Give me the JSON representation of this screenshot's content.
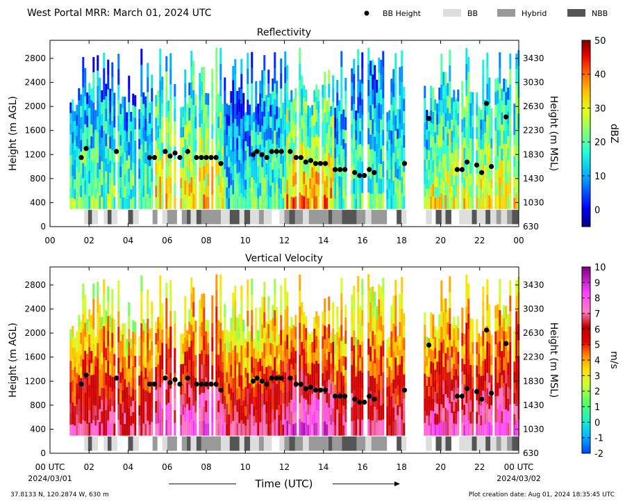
{
  "header": {
    "title": "West Portal MRR:  March 01, 2024 UTC",
    "legend": [
      {
        "label": "BB Height",
        "kind": "dot",
        "color": "#000000"
      },
      {
        "label": "BB",
        "kind": "box",
        "color": "#dddddd"
      },
      {
        "label": "Hybrid",
        "kind": "box",
        "color": "#999999"
      },
      {
        "label": "NBB",
        "kind": "box",
        "color": "#555555"
      }
    ]
  },
  "footer": {
    "location": "37.8133 N, 120.2874 W, 630 m",
    "created": "Plot creation date: Aug 01, 2024 18:35:45 UTC",
    "date_start": "2024/03/01",
    "date_end": "2024/03/02"
  },
  "shared_axes": {
    "xlabel": "Time (UTC)",
    "x_ticks": [
      0,
      2,
      4,
      6,
      8,
      10,
      12,
      14,
      16,
      18,
      20,
      22,
      24
    ],
    "x_tick_labels_top": [
      "00",
      "02",
      "04",
      "06",
      "08",
      "10",
      "12",
      "14",
      "16",
      "18",
      "20",
      "22",
      "00"
    ],
    "x_tick_labels_bottom": [
      "00 UTC",
      "02",
      "04",
      "06",
      "08",
      "10",
      "12",
      "14",
      "16",
      "18",
      "20",
      "22",
      "00 UTC"
    ],
    "xlim": [
      0,
      24
    ],
    "ylabel_left": "Height (m AGL)",
    "ylabel_right": "Height (m MSL)",
    "y_ticks_left": [
      0,
      400,
      800,
      1200,
      1600,
      2000,
      2400,
      2800
    ],
    "y_ticks_right": [
      630,
      1030,
      1430,
      1830,
      2230,
      2630,
      3030,
      3430
    ],
    "ylim": [
      0,
      3100
    ]
  },
  "chart_data": [
    {
      "type": "heatmap",
      "title": "Reflectivity",
      "colorbar_label": "dBZ",
      "colorbar_range": [
        -5,
        50
      ],
      "colorbar_ticks": [
        0,
        10,
        20,
        30,
        40,
        50
      ],
      "bb_height": {
        "x": [
          1.6,
          1.85,
          3.4,
          5.1,
          5.35,
          5.9,
          6.15,
          6.4,
          6.65,
          7.05,
          7.5,
          7.75,
          8.0,
          8.25,
          8.5,
          8.75,
          10.4,
          10.6,
          10.85,
          11.1,
          11.35,
          11.6,
          11.85,
          12.3,
          12.6,
          12.85,
          13.1,
          13.35,
          13.6,
          13.85,
          14.1,
          14.6,
          14.85,
          15.1,
          15.6,
          15.85,
          16.1,
          16.35,
          16.6,
          18.15,
          19.4,
          20.85,
          21.1,
          21.35,
          21.85,
          22.1,
          22.35,
          22.6,
          23.35
        ],
        "y": [
          1150,
          1300,
          1250,
          1150,
          1150,
          1250,
          1175,
          1225,
          1150,
          1250,
          1150,
          1150,
          1150,
          1150,
          1150,
          1050,
          1200,
          1250,
          1200,
          1150,
          1250,
          1250,
          1250,
          1250,
          1150,
          1150,
          1075,
          1100,
          1050,
          1050,
          1050,
          950,
          950,
          950,
          900,
          850,
          850,
          950,
          900,
          1050,
          1800,
          950,
          950,
          1075,
          1025,
          900,
          2050,
          1000,
          1825
        ]
      },
      "bb_type_segments": [
        {
          "type": "BB",
          "start": 1.75,
          "end": 1.95
        },
        {
          "type": "NBB",
          "start": 1.95,
          "end": 2.15
        },
        {
          "type": "BB",
          "start": 2.15,
          "end": 2.45
        },
        {
          "type": "BB",
          "start": 2.75,
          "end": 2.95
        },
        {
          "type": "NBB",
          "start": 2.95,
          "end": 3.15
        },
        {
          "type": "BB",
          "start": 3.15,
          "end": 3.45
        },
        {
          "type": "NBB",
          "start": 4.0,
          "end": 4.25
        },
        {
          "type": "BB",
          "start": 4.25,
          "end": 4.55
        },
        {
          "type": "Hybrid",
          "start": 5.25,
          "end": 5.5
        },
        {
          "type": "BB",
          "start": 5.75,
          "end": 6.0
        },
        {
          "type": "Hybrid",
          "start": 6.0,
          "end": 6.5
        },
        {
          "type": "Hybrid",
          "start": 6.75,
          "end": 7.0
        },
        {
          "type": "NBB",
          "start": 7.0,
          "end": 7.2
        },
        {
          "type": "BB",
          "start": 7.2,
          "end": 7.5
        },
        {
          "type": "NBB",
          "start": 7.5,
          "end": 7.75
        },
        {
          "type": "Hybrid",
          "start": 7.75,
          "end": 8.75
        },
        {
          "type": "BB",
          "start": 8.75,
          "end": 9.2
        },
        {
          "type": "NBB",
          "start": 9.2,
          "end": 9.7
        },
        {
          "type": "BB",
          "start": 9.7,
          "end": 9.95
        },
        {
          "type": "NBB",
          "start": 9.95,
          "end": 10.25
        },
        {
          "type": "BB",
          "start": 10.25,
          "end": 10.7
        },
        {
          "type": "Hybrid",
          "start": 10.7,
          "end": 10.95
        },
        {
          "type": "BB",
          "start": 10.95,
          "end": 11.35
        },
        {
          "type": "BB",
          "start": 11.75,
          "end": 12.0
        },
        {
          "type": "Hybrid",
          "start": 12.0,
          "end": 12.25
        },
        {
          "type": "NBB",
          "start": 12.25,
          "end": 12.55
        },
        {
          "type": "Hybrid",
          "start": 12.55,
          "end": 12.95
        },
        {
          "type": "BB",
          "start": 12.95,
          "end": 13.25
        },
        {
          "type": "Hybrid",
          "start": 13.25,
          "end": 14.25
        },
        {
          "type": "NBB",
          "start": 14.25,
          "end": 14.45
        },
        {
          "type": "Hybrid",
          "start": 14.45,
          "end": 14.95
        },
        {
          "type": "NBB",
          "start": 14.95,
          "end": 15.7
        },
        {
          "type": "Hybrid",
          "start": 15.7,
          "end": 16.15
        },
        {
          "type": "BB",
          "start": 16.15,
          "end": 16.45
        },
        {
          "type": "Hybrid",
          "start": 16.45,
          "end": 17.25
        },
        {
          "type": "NBB",
          "start": 17.75,
          "end": 18.0
        },
        {
          "type": "BB",
          "start": 18.0,
          "end": 18.25
        },
        {
          "type": "BB",
          "start": 19.25,
          "end": 19.55
        },
        {
          "type": "NBB",
          "start": 19.75,
          "end": 20.05
        },
        {
          "type": "BB",
          "start": 20.05,
          "end": 20.25
        },
        {
          "type": "NBB",
          "start": 20.25,
          "end": 20.55
        },
        {
          "type": "BB",
          "start": 20.95,
          "end": 21.6
        },
        {
          "type": "NBB",
          "start": 21.6,
          "end": 21.85
        },
        {
          "type": "BB",
          "start": 21.85,
          "end": 22.3
        },
        {
          "type": "NBB",
          "start": 22.3,
          "end": 22.55
        },
        {
          "type": "BB",
          "start": 22.55,
          "end": 22.85
        },
        {
          "type": "Hybrid",
          "start": 22.85,
          "end": 23.1
        },
        {
          "type": "BB",
          "start": 23.1,
          "end": 23.4
        },
        {
          "type": "Hybrid",
          "start": 23.4,
          "end": 23.65
        },
        {
          "type": "NBB",
          "start": 23.65,
          "end": 24.0
        }
      ]
    },
    {
      "type": "heatmap",
      "title": "Vertical Velocity",
      "colorbar_label": "m/s",
      "colorbar_range": [
        -2,
        10
      ],
      "colorbar_ticks": [
        -2,
        -1,
        0,
        1,
        2,
        3,
        4,
        5,
        6,
        7,
        8,
        9,
        10
      ],
      "bb_height": {
        "x": [
          1.6,
          1.85,
          3.4,
          5.1,
          5.35,
          5.9,
          6.15,
          6.4,
          6.65,
          7.05,
          7.5,
          7.75,
          8.0,
          8.25,
          8.5,
          8.75,
          10.4,
          10.6,
          10.85,
          11.1,
          11.35,
          11.6,
          11.85,
          12.3,
          12.6,
          12.85,
          13.1,
          13.35,
          13.6,
          13.85,
          14.1,
          14.6,
          14.85,
          15.1,
          15.6,
          15.85,
          16.1,
          16.35,
          16.6,
          18.15,
          19.4,
          20.85,
          21.1,
          21.35,
          21.85,
          22.1,
          22.35,
          22.6,
          23.35
        ],
        "y": [
          1150,
          1300,
          1250,
          1150,
          1150,
          1250,
          1175,
          1225,
          1150,
          1250,
          1150,
          1150,
          1150,
          1150,
          1150,
          1050,
          1200,
          1250,
          1200,
          1150,
          1250,
          1250,
          1250,
          1250,
          1150,
          1150,
          1075,
          1100,
          1050,
          1050,
          1050,
          950,
          950,
          950,
          900,
          850,
          850,
          950,
          900,
          1050,
          1800,
          950,
          950,
          1075,
          1025,
          900,
          2050,
          1000,
          1825
        ]
      },
      "bb_type_segments": "same as Reflectivity"
    }
  ]
}
